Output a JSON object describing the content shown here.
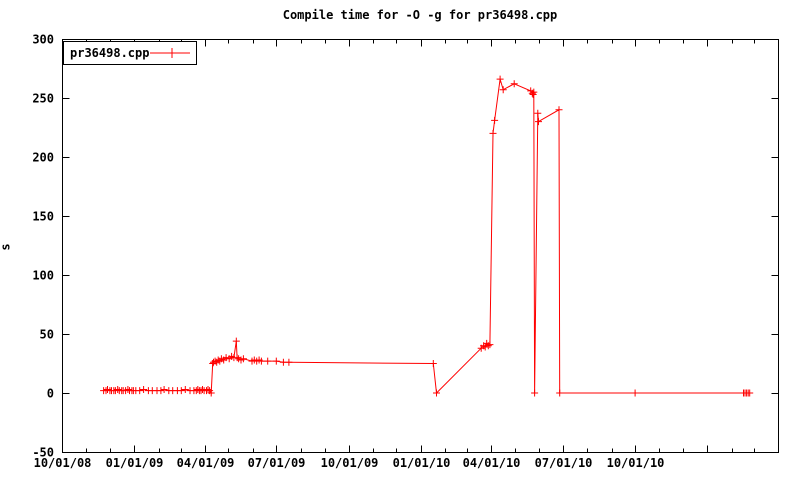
{
  "chart": {
    "title": "Compile time for -O -g for pr36498.cpp",
    "ylabel": "s",
    "colors": {
      "series": "#ff0000",
      "axis": "#000000",
      "background": "#ffffff"
    }
  },
  "chart_data": {
    "type": "line",
    "title": "Compile time for -O -g for pr36498.cpp",
    "xlabel": "",
    "ylabel": "s",
    "ylim": [
      -50,
      300
    ],
    "xlim": [
      "2008-10-01",
      "2011-04-01"
    ],
    "grid": false,
    "legend_position": "top-left-boxed",
    "marker": "plus",
    "y_ticks": [
      -50,
      0,
      50,
      100,
      150,
      200,
      250,
      300
    ],
    "x_ticks_labeled": [
      [
        "2008-10-01",
        "10/01/08"
      ],
      [
        "2009-01-01",
        "01/01/09"
      ],
      [
        "2009-04-01",
        "04/01/09"
      ],
      [
        "2009-07-01",
        "07/01/09"
      ],
      [
        "2009-10-01",
        "10/01/09"
      ],
      [
        "2010-01-01",
        "01/01/10"
      ],
      [
        "2010-04-01",
        "04/01/10"
      ],
      [
        "2010-07-01",
        "07/01/10"
      ],
      [
        "2010-10-01",
        "10/01/10"
      ]
    ],
    "x_ticks_major_unlabeled": [
      "2011-01-01",
      "2011-04-01"
    ],
    "series": [
      {
        "name": "pr36498.cpp",
        "color": "#ff0000",
        "points": [
          [
            "2008-11-23",
            2
          ],
          [
            "2008-11-26",
            2
          ],
          [
            "2008-11-28",
            3
          ],
          [
            "2008-12-01",
            2
          ],
          [
            "2008-12-03",
            2
          ],
          [
            "2008-12-06",
            2
          ],
          [
            "2008-12-08",
            2
          ],
          [
            "2008-12-11",
            3
          ],
          [
            "2008-12-13",
            2
          ],
          [
            "2008-12-16",
            2
          ],
          [
            "2008-12-18",
            2
          ],
          [
            "2008-12-21",
            2
          ],
          [
            "2008-12-24",
            3
          ],
          [
            "2008-12-26",
            2
          ],
          [
            "2008-12-29",
            2
          ],
          [
            "2008-12-31",
            2
          ],
          [
            "2009-01-03",
            2
          ],
          [
            "2009-01-08",
            2
          ],
          [
            "2009-01-13",
            3
          ],
          [
            "2009-01-19",
            2
          ],
          [
            "2009-01-24",
            2
          ],
          [
            "2009-01-30",
            2
          ],
          [
            "2009-02-04",
            2
          ],
          [
            "2009-02-08",
            3
          ],
          [
            "2009-02-14",
            2
          ],
          [
            "2009-02-19",
            2
          ],
          [
            "2009-02-25",
            2
          ],
          [
            "2009-03-02",
            2
          ],
          [
            "2009-03-07",
            3
          ],
          [
            "2009-03-13",
            2
          ],
          [
            "2009-03-18",
            2
          ],
          [
            "2009-03-21",
            2
          ],
          [
            "2009-03-23",
            3
          ],
          [
            "2009-03-25",
            2
          ],
          [
            "2009-03-27",
            2
          ],
          [
            "2009-03-29",
            3
          ],
          [
            "2009-03-31",
            2
          ],
          [
            "2009-04-03",
            2
          ],
          [
            "2009-04-05",
            3
          ],
          [
            "2009-04-07",
            2
          ],
          [
            "2009-04-09",
            0
          ],
          [
            "2009-04-11",
            25
          ],
          [
            "2009-04-12",
            26
          ],
          [
            "2009-04-14",
            27
          ],
          [
            "2009-04-16",
            26
          ],
          [
            "2009-04-18",
            28
          ],
          [
            "2009-04-20",
            27
          ],
          [
            "2009-04-22",
            29
          ],
          [
            "2009-04-25",
            28
          ],
          [
            "2009-04-28",
            30
          ],
          [
            "2009-05-02",
            29
          ],
          [
            "2009-05-05",
            31
          ],
          [
            "2009-05-08",
            30
          ],
          [
            "2009-05-11",
            44
          ],
          [
            "2009-05-12",
            30
          ],
          [
            "2009-05-14",
            29
          ],
          [
            "2009-05-17",
            28
          ],
          [
            "2009-05-20",
            29
          ],
          [
            "2009-05-31",
            27
          ],
          [
            "2009-06-03",
            28
          ],
          [
            "2009-06-06",
            27
          ],
          [
            "2009-06-09",
            28
          ],
          [
            "2009-06-12",
            27
          ],
          [
            "2009-06-20",
            27
          ],
          [
            "2009-07-01",
            27
          ],
          [
            "2009-07-10",
            26
          ],
          [
            "2009-07-17",
            26
          ],
          [
            "2010-01-17",
            25
          ],
          [
            "2010-01-21",
            0
          ],
          [
            "2010-03-19",
            38
          ],
          [
            "2010-03-22",
            40
          ],
          [
            "2010-03-24",
            39
          ],
          [
            "2010-03-26",
            42
          ],
          [
            "2010-03-28",
            40
          ],
          [
            "2010-03-30",
            41
          ],
          [
            "2010-04-03",
            220
          ],
          [
            "2010-04-05",
            231
          ],
          [
            "2010-04-12",
            266
          ],
          [
            "2010-04-16",
            257
          ],
          [
            "2010-04-30",
            262
          ],
          [
            "2010-05-21",
            256
          ],
          [
            "2010-05-23",
            254
          ],
          [
            "2010-05-24",
            253
          ],
          [
            "2010-05-25",
            255
          ],
          [
            "2010-05-26",
            0
          ],
          [
            "2010-05-30",
            237
          ],
          [
            "2010-05-31",
            230
          ],
          [
            "2010-06-26",
            240
          ],
          [
            "2010-06-27",
            0
          ],
          [
            "2010-10-01",
            0
          ],
          [
            "2011-02-16",
            0
          ],
          [
            "2011-02-18",
            0
          ],
          [
            "2011-02-20",
            0
          ],
          [
            "2011-02-22",
            0
          ],
          [
            "2011-02-24",
            0
          ]
        ]
      }
    ]
  }
}
